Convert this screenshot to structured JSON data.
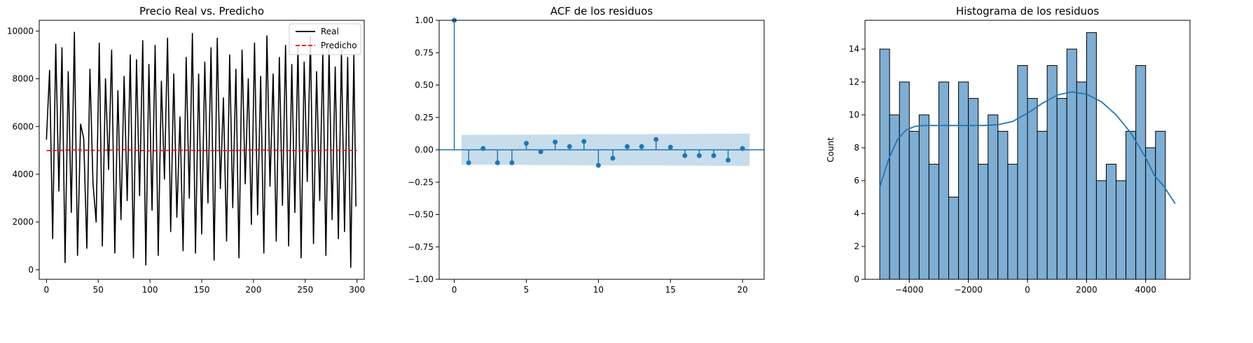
{
  "chart_data": [
    {
      "type": "line",
      "title": "Precio Real vs. Predicho",
      "xlabel": "",
      "ylabel": "",
      "xlim": [
        -7,
        307
      ],
      "ylim": [
        -400,
        10450
      ],
      "xticks": [
        0,
        50,
        100,
        150,
        200,
        250,
        300
      ],
      "yticks": [
        0,
        2000,
        4000,
        6000,
        8000,
        10000
      ],
      "legend_position": "upper-right",
      "grid": false,
      "series": [
        {
          "name": "Real",
          "color": "#000000",
          "style": "solid",
          "x": [
            0,
            3,
            6,
            9,
            12,
            15,
            18,
            21,
            24,
            27,
            30,
            33,
            36,
            39,
            42,
            45,
            48,
            51,
            54,
            57,
            60,
            63,
            66,
            69,
            72,
            75,
            78,
            81,
            84,
            87,
            90,
            93,
            96,
            99,
            102,
            105,
            108,
            111,
            114,
            117,
            120,
            123,
            126,
            129,
            132,
            135,
            138,
            141,
            144,
            147,
            150,
            153,
            156,
            159,
            162,
            165,
            168,
            171,
            174,
            177,
            180,
            183,
            186,
            189,
            192,
            195,
            198,
            201,
            204,
            207,
            210,
            213,
            216,
            219,
            222,
            225,
            228,
            231,
            234,
            237,
            240,
            243,
            246,
            249,
            252,
            255,
            258,
            261,
            264,
            267,
            270,
            273,
            276,
            279,
            282,
            285,
            288,
            291,
            294,
            297,
            299
          ],
          "y": [
            5450,
            8350,
            1300,
            9450,
            3300,
            9300,
            300,
            8300,
            2400,
            9950,
            600,
            6100,
            5500,
            900,
            8400,
            3600,
            2000,
            9500,
            1000,
            8000,
            4200,
            9200,
            700,
            7500,
            2100,
            8100,
            2900,
            9000,
            500,
            8800,
            3100,
            9600,
            200,
            8600,
            2500,
            9400,
            600,
            7900,
            3800,
            9700,
            1600,
            8200,
            2200,
            6400,
            800,
            8900,
            3000,
            9900,
            700,
            8200,
            1500,
            8700,
            2800,
            9300,
            400,
            9700,
            3400,
            7200,
            1200,
            9000,
            2600,
            8400,
            500,
            9200,
            3600,
            8000,
            1900,
            9500,
            2300,
            8100,
            700,
            9800,
            3500,
            8200,
            1200,
            8900,
            2700,
            9400,
            1000,
            8600,
            2400,
            9400,
            500,
            8700,
            3700,
            9800,
            1100,
            8300,
            2900,
            9100,
            600,
            9300,
            2100,
            8500,
            1300,
            9200,
            1600,
            8900,
            100,
            9000,
            2650
          ]
        },
        {
          "name": "Predicho",
          "color": "#ff0000",
          "style": "dashed",
          "x": [
            0,
            25,
            50,
            75,
            100,
            125,
            150,
            175,
            200,
            225,
            250,
            275,
            300
          ],
          "y": [
            4990,
            5020,
            5000,
            5030,
            4980,
            5010,
            5000,
            4990,
            5020,
            5000,
            4990,
            5010,
            5000
          ]
        }
      ]
    },
    {
      "type": "stem",
      "title": "ACF de los residuos",
      "xlabel": "",
      "ylabel": "",
      "xlim": [
        -1.05,
        21.5
      ],
      "ylim": [
        -1.0,
        1.0
      ],
      "xticks": [
        0,
        5,
        10,
        15,
        20
      ],
      "yticks": [
        -1.0,
        -0.75,
        -0.5,
        -0.25,
        0.0,
        0.25,
        0.5,
        0.75,
        1.0
      ],
      "ytick_labels": [
        "−1.00",
        "−0.75",
        "−0.50",
        "−0.25",
        "0.00",
        "0.25",
        "0.50",
        "0.75",
        "1.00"
      ],
      "color": "#1f77b4",
      "confidence_color": "#1f77b4",
      "confidence_band": [
        {
          "lag": 0.5,
          "bound": 0.115
        },
        {
          "lag": 20.5,
          "bound": 0.125
        }
      ],
      "lags": [
        0,
        1,
        2,
        3,
        4,
        5,
        6,
        7,
        8,
        9,
        10,
        11,
        12,
        13,
        14,
        15,
        16,
        17,
        18,
        19,
        20
      ],
      "values": [
        1.0,
        -0.1,
        0.01,
        -0.1,
        -0.1,
        0.05,
        -0.015,
        0.06,
        0.025,
        0.065,
        -0.12,
        -0.065,
        0.025,
        0.025,
        0.08,
        0.02,
        -0.045,
        -0.045,
        -0.045,
        -0.08,
        0.01
      ]
    },
    {
      "type": "histogram",
      "title": "Histograma de los residuos",
      "xlabel": "",
      "ylabel": "Count",
      "xlim": [
        -5500,
        5500
      ],
      "ylim": [
        0,
        15.75
      ],
      "xticks": [
        -4000,
        -2000,
        0,
        2000,
        4000
      ],
      "xtick_labels": [
        "−4000",
        "−2000",
        "0",
        "2000",
        "4000"
      ],
      "yticks": [
        0,
        2,
        4,
        6,
        8,
        10,
        12,
        14
      ],
      "bar_color": "#7eaed3",
      "edge_color": "#000000",
      "kde_color": "#1f77b4",
      "bin_start": -5000,
      "bin_width": 333.33,
      "counts": [
        14,
        10,
        12,
        9,
        10,
        7,
        12,
        5,
        12,
        11,
        7,
        10,
        9,
        7,
        13,
        11,
        9,
        13,
        11,
        14,
        12,
        15,
        6,
        7,
        6,
        9,
        13,
        8,
        9
      ],
      "kde": {
        "x": [
          -5000,
          -4700,
          -4400,
          -4100,
          -3800,
          -3500,
          -3000,
          -2500,
          -2000,
          -1500,
          -1000,
          -500,
          0,
          500,
          1000,
          1500,
          2000,
          2500,
          3000,
          3500,
          4000,
          4300,
          4600,
          5000
        ],
        "y": [
          5.6,
          7.3,
          8.5,
          9.1,
          9.3,
          9.35,
          9.35,
          9.35,
          9.35,
          9.35,
          9.4,
          9.6,
          10.1,
          10.7,
          11.2,
          11.4,
          11.25,
          10.8,
          10.0,
          8.9,
          7.4,
          6.3,
          5.7,
          4.6
        ]
      }
    }
  ]
}
